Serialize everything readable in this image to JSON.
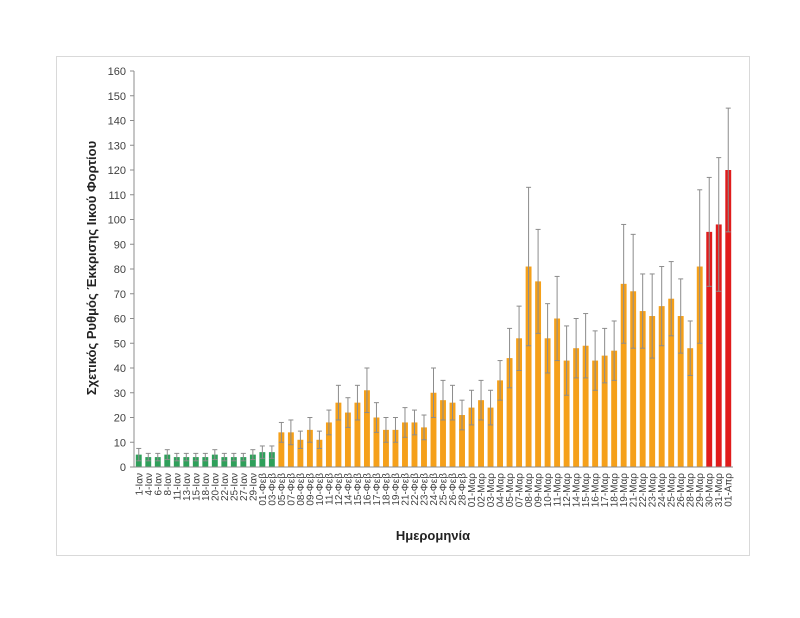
{
  "chart_data": {
    "type": "bar",
    "title": "",
    "xlabel": "Ημερομηνία",
    "ylabel": "Σχετικός Ρυθμός Έκκρισης Ιικού Φορτίου",
    "ylim": [
      0,
      160
    ],
    "yticks": [
      0,
      10,
      20,
      30,
      40,
      50,
      60,
      70,
      80,
      90,
      100,
      110,
      120,
      130,
      140,
      150,
      160
    ],
    "grid": false,
    "legend": "none",
    "colors": {
      "green": "#2ea05a",
      "orange": "#f5a01a",
      "red": "#e01c1c",
      "error": "#8c8c8c",
      "axis": "#8c8c8c"
    },
    "categories": [
      "1-Ιαν",
      "4-Ιαν",
      "6-Ιαν",
      "8-Ιαν",
      "11-Ιαν",
      "13-Ιαν",
      "15-Ιαν",
      "18-Ιαν",
      "20-Ιαν",
      "22-Ιαν",
      "25-Ιαν",
      "27-Ιαν",
      "29-Ιαν",
      "01-Φεβ",
      "03-Φεβ",
      "05-Φεβ",
      "07-Φεβ",
      "08-Φεβ",
      "09-Φεβ",
      "10-Φεβ",
      "11-Φεβ",
      "12-Φεβ",
      "14-Φεβ",
      "15-Φεβ",
      "16-Φεβ",
      "17-Φεβ",
      "18-Φεβ",
      "19-Φεβ",
      "21-Φεβ",
      "22-Φεβ",
      "23-Φεβ",
      "24-Φεβ",
      "25-Φεβ",
      "26-Φεβ",
      "28-Φεβ",
      "01-Μαρ",
      "02-Μαρ",
      "03-Μαρ",
      "04-Μαρ",
      "05-Μαρ",
      "07-Μαρ",
      "08-Μαρ",
      "09-Μαρ",
      "10-Μαρ",
      "11-Μαρ",
      "12-Μαρ",
      "14-Μαρ",
      "15-Μαρ",
      "16-Μαρ",
      "17-Μαρ",
      "18-Μαρ",
      "19-Μαρ",
      "21-Μαρ",
      "22-Μαρ",
      "23-Μαρ",
      "24-Μαρ",
      "25-Μαρ",
      "26-Μαρ",
      "28-Μαρ",
      "29-Μαρ",
      "30-Μαρ",
      "31-Μαρ",
      "01-Απρ"
    ],
    "values": [
      5,
      4,
      4,
      5,
      4,
      4,
      4,
      4,
      5,
      4,
      4,
      4,
      5,
      6,
      6,
      14,
      14,
      11,
      15,
      11,
      18,
      26,
      22,
      26,
      31,
      20,
      15,
      15,
      18,
      18,
      16,
      30,
      27,
      26,
      21,
      24,
      27,
      24,
      35,
      44,
      52,
      81,
      75,
      52,
      60,
      43,
      48,
      49,
      43,
      45,
      47,
      74,
      71,
      63,
      61,
      65,
      68,
      61,
      48,
      81,
      95,
      98,
      120
    ],
    "errors": [
      2.5,
      1.5,
      1.5,
      2,
      1.5,
      1.5,
      1.5,
      1.5,
      2,
      1.5,
      1.5,
      1.5,
      2,
      2.5,
      2.5,
      4,
      5,
      3.5,
      5,
      3.5,
      5,
      7,
      6,
      7,
      9,
      6,
      5,
      5,
      6,
      5,
      5,
      10,
      8,
      7,
      6,
      7,
      8,
      7,
      8,
      12,
      13,
      32,
      21,
      14,
      17,
      14,
      12,
      13,
      12,
      11,
      12,
      24,
      23,
      15,
      17,
      16,
      15,
      15,
      11,
      31,
      22,
      27,
      25
    ],
    "bar_colors": [
      "green",
      "green",
      "green",
      "green",
      "green",
      "green",
      "green",
      "green",
      "green",
      "green",
      "green",
      "green",
      "green",
      "green",
      "green",
      "orange",
      "orange",
      "orange",
      "orange",
      "orange",
      "orange",
      "orange",
      "orange",
      "orange",
      "orange",
      "orange",
      "orange",
      "orange",
      "orange",
      "orange",
      "orange",
      "orange",
      "orange",
      "orange",
      "orange",
      "orange",
      "orange",
      "orange",
      "orange",
      "orange",
      "orange",
      "orange",
      "orange",
      "orange",
      "orange",
      "orange",
      "orange",
      "orange",
      "orange",
      "orange",
      "orange",
      "orange",
      "orange",
      "orange",
      "orange",
      "orange",
      "orange",
      "orange",
      "orange",
      "orange",
      "red",
      "red",
      "red"
    ]
  }
}
